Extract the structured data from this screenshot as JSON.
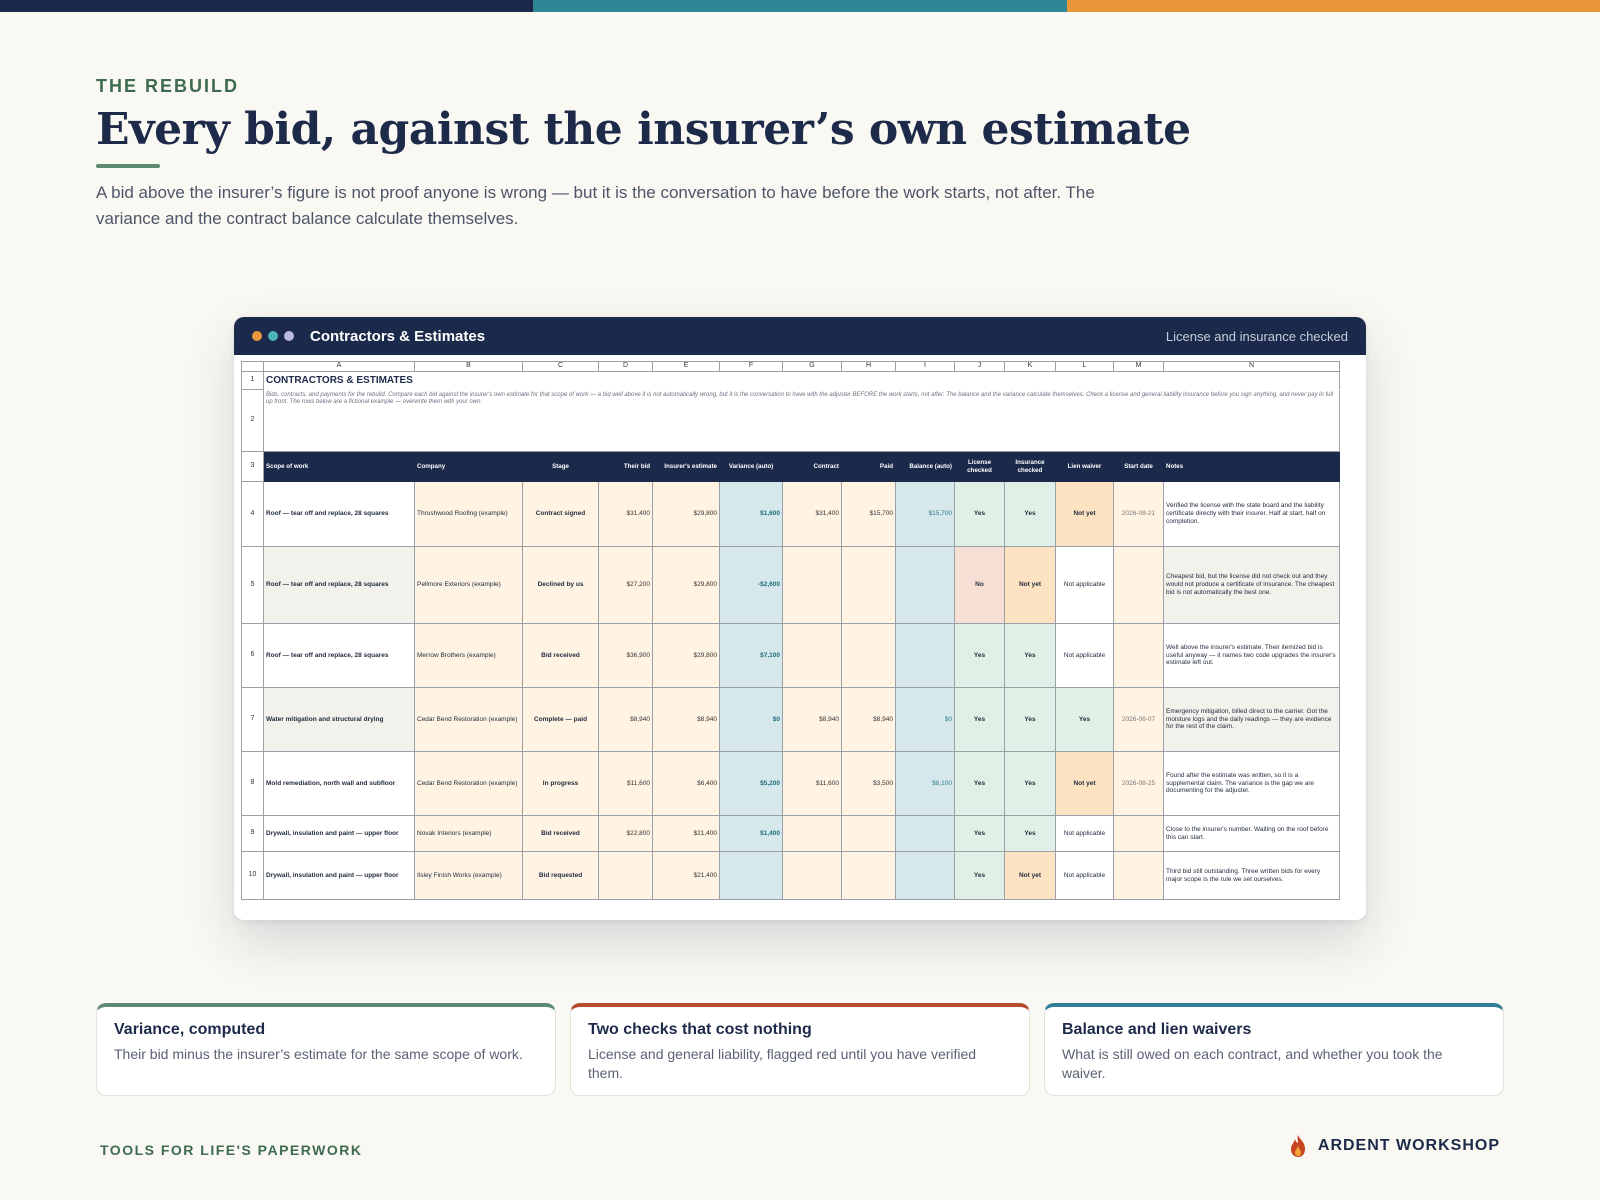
{
  "colors": {
    "navy": "#1b2a4b",
    "teal": "#2f8795",
    "orange": "#e9963b",
    "green": "#5f8a72",
    "red": "#b54c2e",
    "blue": "#2f7e95"
  },
  "eyebrow": "THE REBUILD",
  "headline": "Every bid, against the insurer’s own estimate",
  "lede": "A bid above the insurer’s figure is not proof anyone is wrong — but it is the conversation to have before the work starts, not after. The variance and the contract balance calculate themselves.",
  "window": {
    "title": "Contractors & Estimates",
    "note": "License and insurance checked",
    "icon": "window-dots-icon"
  },
  "sheet": {
    "column_letters": [
      "A",
      "B",
      "C",
      "D",
      "E",
      "F",
      "G",
      "H",
      "I",
      "J",
      "K",
      "L",
      "M",
      "N"
    ],
    "title": "CONTRACTORS & ESTIMATES",
    "description": "Bids, contracts, and payments for the rebuild. Compare each bid against the insurer's own estimate for that scope of work — a bid well above it is not automatically wrong, but it is the conversation to have with the adjuster BEFORE the work starts, not after. The balance and the variance calculate themselves. Check a license and general liability insurance before you sign anything, and never pay in full up front. The rows below are a fictional example — overwrite them with your own.",
    "headers": [
      "Scope of work",
      "Company",
      "Stage",
      "Their bid",
      "Insurer's estimate",
      "Variance (auto)",
      "Contract",
      "Paid",
      "Balance (auto)",
      "License checked",
      "Insurance checked",
      "Lien waiver",
      "Start date",
      "Notes"
    ],
    "rows": [
      {
        "n": "4",
        "scope": "Roof — tear off and replace, 28 squares",
        "company": "Thrushwood Roofing (example)",
        "stage": "Contract signed",
        "bid": "$31,400",
        "est": "$29,800",
        "variance": "$1,600",
        "contract": "$31,400",
        "paid": "$15,700",
        "balance": "$15,700",
        "license": "Yes",
        "insurance": "Yes",
        "lien": "Not yet",
        "start": "2026-08-21",
        "notes": "Verified the license with the state board and the liability certificate directly with their insurer. Half at start, half on completion."
      },
      {
        "n": "5",
        "scope": "Roof — tear off and replace, 28 squares",
        "company": "Pellmore Exteriors (example)",
        "stage": "Declined by us",
        "bid": "$27,200",
        "est": "$29,800",
        "variance": "-$2,600",
        "contract": "",
        "paid": "",
        "balance": "",
        "license": "No",
        "insurance": "Not yet",
        "lien": "Not applicable",
        "start": "",
        "notes": "Cheapest bid, but the license did not check out and they would not produce a certificate of insurance. The cheapest bid is not automatically the best one."
      },
      {
        "n": "6",
        "scope": "Roof — tear off and replace, 28 squares",
        "company": "Merrow Brothers (example)",
        "stage": "Bid received",
        "bid": "$36,900",
        "est": "$29,800",
        "variance": "$7,100",
        "contract": "",
        "paid": "",
        "balance": "",
        "license": "Yes",
        "insurance": "Yes",
        "lien": "Not applicable",
        "start": "",
        "notes": "Well above the insurer's estimate. Their itemized bid is useful anyway — it names two code upgrades the insurer's estimate left out."
      },
      {
        "n": "7",
        "scope": "Water mitigation and structural drying",
        "company": "Cedar Bend Restoration (example)",
        "stage": "Complete — paid",
        "bid": "$8,940",
        "est": "$8,940",
        "variance": "$0",
        "contract": "$8,940",
        "paid": "$8,940",
        "balance": "$0",
        "license": "Yes",
        "insurance": "Yes",
        "lien": "Yes",
        "start": "2026-06-07",
        "notes": "Emergency mitigation, billed direct to the carrier. Got the moisture logs and the daily readings — they are evidence for the rest of the claim."
      },
      {
        "n": "8",
        "scope": "Mold remediation, north wall and subfloor",
        "company": "Cedar Bend Restoration (example)",
        "stage": "In progress",
        "bid": "$11,600",
        "est": "$6,400",
        "variance": "$5,200",
        "contract": "$11,600",
        "paid": "$3,500",
        "balance": "$8,100",
        "license": "Yes",
        "insurance": "Yes",
        "lien": "Not yet",
        "start": "2026-08-25",
        "notes": "Found after the estimate was written, so it is a supplemental claim. The variance is the gap we are documenting for the adjuster."
      },
      {
        "n": "9",
        "scope": "Drywall, insulation and paint — upper floor",
        "company": "Novak Interiors (example)",
        "stage": "Bid received",
        "bid": "$22,800",
        "est": "$21,400",
        "variance": "$1,400",
        "contract": "",
        "paid": "",
        "balance": "",
        "license": "Yes",
        "insurance": "Yes",
        "lien": "Not applicable",
        "start": "",
        "notes": "Close to the insurer's number. Waiting on the roof before this can start."
      },
      {
        "n": "10",
        "scope": "Drywall, insulation and paint — upper floor",
        "company": "Ilsley Finish Works (example)",
        "stage": "Bid requested",
        "bid": "",
        "est": "$21,400",
        "variance": "",
        "contract": "",
        "paid": "",
        "balance": "",
        "license": "Yes",
        "insurance": "Not yet",
        "lien": "Not applicable",
        "start": "",
        "notes": "Third bid still outstanding. Three written bids for every major scope is the rule we set ourselves."
      }
    ]
  },
  "cards": [
    {
      "title": "Variance, computed",
      "body": "Their bid minus the insurer’s estimate for the same scope of work."
    },
    {
      "title": "Two checks that cost nothing",
      "body": "License and general liability, flagged red until you have verified them."
    },
    {
      "title": "Balance and lien waivers",
      "body": "What is still owed on each contract, and whether you took the waiver."
    }
  ],
  "footer": {
    "left": "TOOLS FOR LIFE'S PAPERWORK",
    "brand": "ARDENT WORKSHOP",
    "brand_icon": "flame-icon"
  }
}
